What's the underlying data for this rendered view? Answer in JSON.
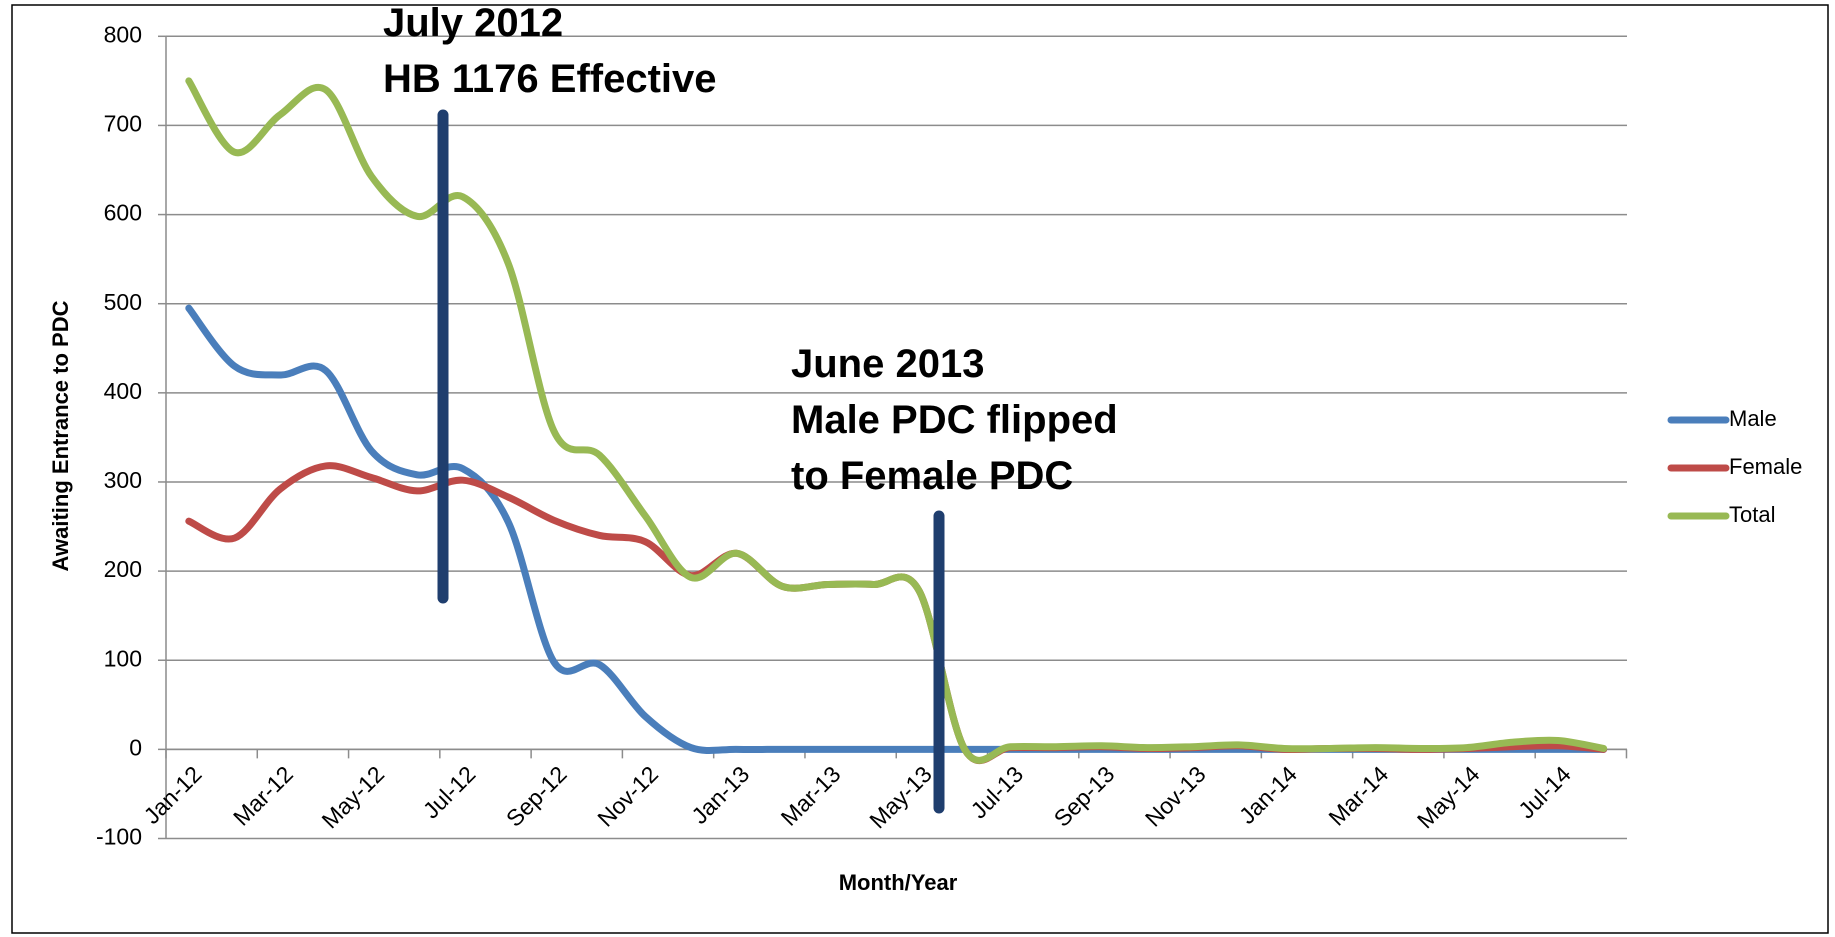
{
  "chart_data": {
    "type": "line",
    "xlabel": "Month/Year",
    "ylabel": "Awaiting Entrance to PDC",
    "categories": [
      "Jan-12",
      null,
      "Mar-12",
      null,
      "May-12",
      null,
      "Jul-12",
      null,
      "Sep-12",
      null,
      "Nov-12",
      null,
      "Jan-13",
      null,
      "Mar-13",
      null,
      "May-13",
      null,
      "Jul-13",
      null,
      "Sep-13",
      null,
      "Nov-13",
      null,
      "Jan-14",
      null,
      "Mar-14",
      null,
      "May-14",
      null,
      "Jul-14",
      null
    ],
    "series": [
      {
        "name": "Male",
        "color": "#4a7ebb",
        "values": [
          495,
          430,
          420,
          425,
          335,
          308,
          315,
          255,
          98,
          95,
          37,
          2,
          0,
          0,
          0,
          0,
          0,
          0,
          0,
          0,
          0,
          0,
          0,
          0,
          0,
          0,
          0,
          0,
          0,
          0,
          0,
          0
        ]
      },
      {
        "name": "Female",
        "color": "#be4b48",
        "values": [
          256,
          237,
          292,
          318,
          305,
          290,
          302,
          283,
          257,
          240,
          233,
          195,
          220,
          183,
          185,
          185,
          178,
          0,
          2,
          2,
          3,
          1,
          2,
          4,
          0,
          1,
          1,
          0,
          1,
          3,
          4,
          0
        ]
      },
      {
        "name": "Total",
        "color": "#98b954",
        "values": [
          750,
          670,
          712,
          740,
          643,
          598,
          620,
          545,
          357,
          330,
          262,
          193,
          220,
          183,
          185,
          185,
          178,
          0,
          3,
          3,
          4,
          2,
          3,
          5,
          1,
          1,
          2,
          1,
          2,
          8,
          10,
          1
        ]
      }
    ],
    "ylim": [
      -100,
      800
    ],
    "yticks": [
      -100,
      0,
      100,
      200,
      300,
      400,
      500,
      600,
      700,
      800
    ],
    "grid": true,
    "legend": "right",
    "annotations": [
      [
        "July 2012",
        "HB 1176 Effective"
      ],
      [
        "June 2013",
        "Male PDC flipped",
        "to Female PDC"
      ]
    ]
  }
}
